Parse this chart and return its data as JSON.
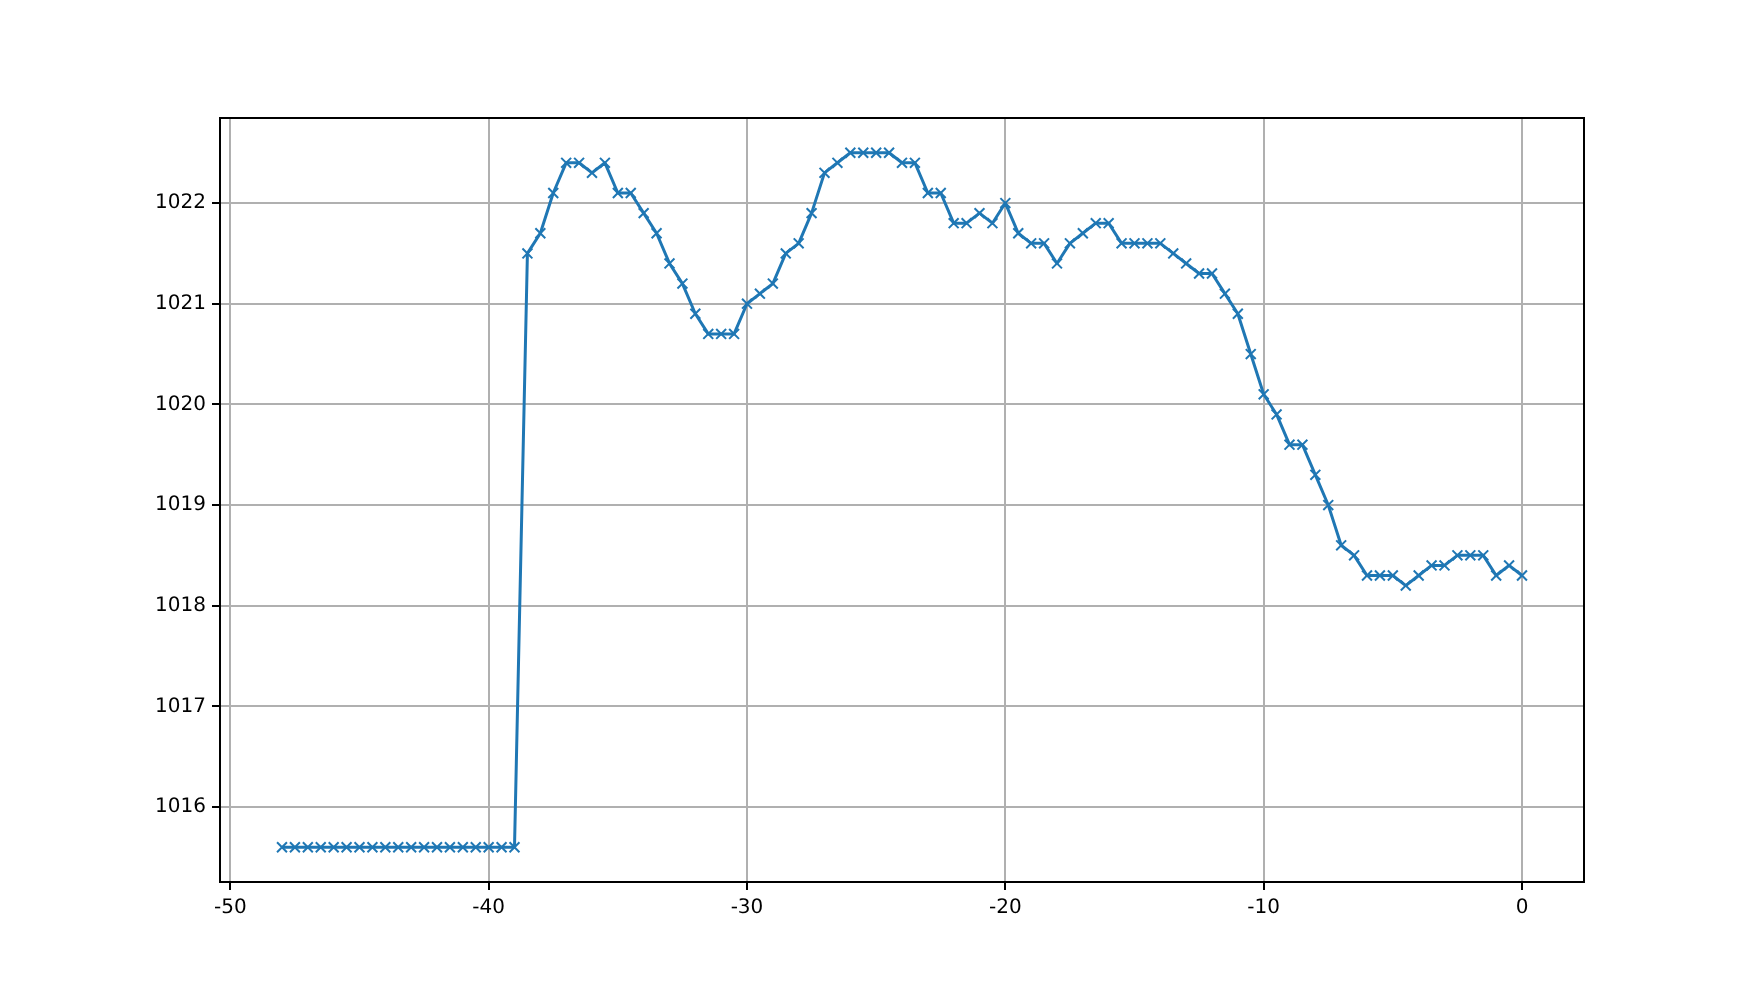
{
  "chart_data": {
    "type": "line",
    "marker": "cross",
    "grid": true,
    "x": [
      -48,
      -47.5,
      -47,
      -46.5,
      -46,
      -45.5,
      -45,
      -44.5,
      -44,
      -43.5,
      -43,
      -42.5,
      -42,
      -41.5,
      -41,
      -40.5,
      -40,
      -39.5,
      -39,
      -38.5,
      -38,
      -37.5,
      -37,
      -36.5,
      -36,
      -35.5,
      -35,
      -34.5,
      -34,
      -33.5,
      -33,
      -32.5,
      -32,
      -31.5,
      -31,
      -30.5,
      -30,
      -29.5,
      -29,
      -28.5,
      -28,
      -27.5,
      -27,
      -26.5,
      -26,
      -25.5,
      -25,
      -24.5,
      -24,
      -23.5,
      -23,
      -22.5,
      -22,
      -21.5,
      -21,
      -20.5,
      -20,
      -19.5,
      -19,
      -18.5,
      -18,
      -17.5,
      -17,
      -16.5,
      -16,
      -15.5,
      -15,
      -14.5,
      -14,
      -13.5,
      -13,
      -12.5,
      -12,
      -11.5,
      -11,
      -10.5,
      -10,
      -9.5,
      -9,
      -8.5,
      -8,
      -7.5,
      -7,
      -6.5,
      -6,
      -5.5,
      -5,
      -4.5,
      -4,
      -3.5,
      -3,
      -2.5,
      -2,
      -1.5,
      -1,
      -0.5,
      0
    ],
    "series": [
      {
        "color": "#1f77b4",
        "values": [
          1015.6,
          1015.6,
          1015.6,
          1015.6,
          1015.6,
          1015.6,
          1015.6,
          1015.6,
          1015.6,
          1015.6,
          1015.6,
          1015.6,
          1015.6,
          1015.6,
          1015.6,
          1015.6,
          1015.6,
          1015.6,
          1015.6,
          1021.5,
          1021.7,
          1022.1,
          1022.4,
          1022.4,
          1022.3,
          1022.4,
          1022.1,
          1022.1,
          1021.9,
          1021.7,
          1021.4,
          1021.2,
          1020.9,
          1020.7,
          1020.7,
          1020.7,
          1021.0,
          1021.1,
          1021.2,
          1021.5,
          1021.6,
          1021.9,
          1022.3,
          1022.4,
          1022.5,
          1022.5,
          1022.5,
          1022.5,
          1022.4,
          1022.4,
          1022.1,
          1022.1,
          1021.8,
          1021.8,
          1021.9,
          1021.8,
          1022.0,
          1021.7,
          1021.6,
          1021.6,
          1021.4,
          1021.6,
          1021.7,
          1021.8,
          1021.8,
          1021.6,
          1021.6,
          1021.6,
          1021.6,
          1021.5,
          1021.4,
          1021.3,
          1021.3,
          1021.1,
          1020.9,
          1020.5,
          1020.1,
          1019.9,
          1019.6,
          1019.6,
          1019.3,
          1019.0,
          1018.6,
          1018.5,
          1018.3,
          1018.3,
          1018.3,
          1018.2,
          1018.3,
          1018.4,
          1018.4,
          1018.5,
          1018.5,
          1018.5,
          1018.3,
          1018.4,
          1018.3
        ]
      }
    ],
    "xlim": [
      -50.4,
      2.4
    ],
    "xticks": [
      -50,
      -40,
      -30,
      -20,
      -10,
      0
    ],
    "ylim": [
      1015.255,
      1022.845
    ],
    "yticks": [
      1016,
      1017,
      1018,
      1019,
      1020,
      1021,
      1022
    ]
  }
}
